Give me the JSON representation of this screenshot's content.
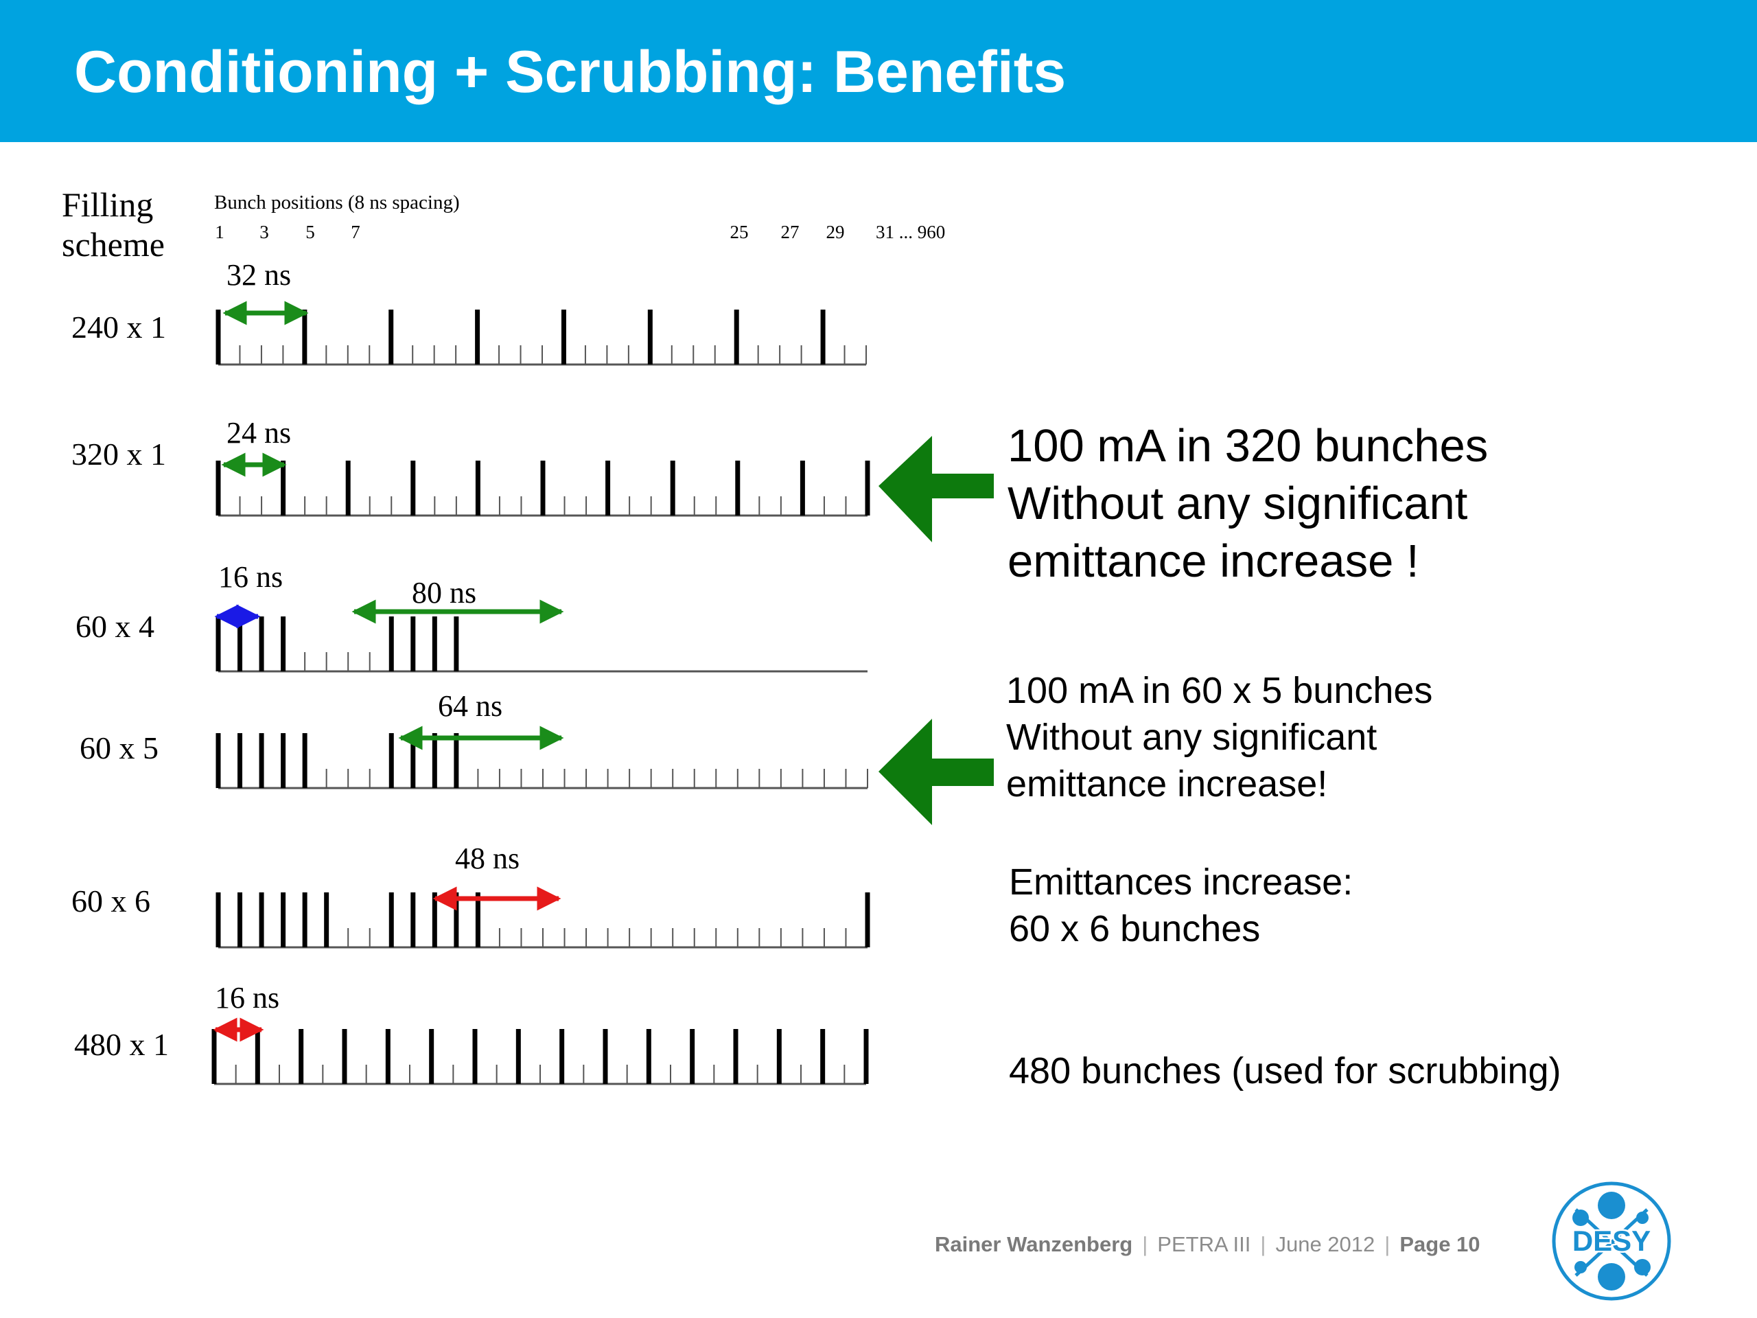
{
  "header": {
    "title": "Conditioning + Scrubbing: Benefits",
    "background_color": "#00a3e0"
  },
  "diagram": {
    "column_header": [
      "Filling",
      "scheme"
    ],
    "bunch_positions_caption": "Bunch positions (8 ns spacing)",
    "position_labels_left": [
      "1",
      "3",
      "5",
      "7"
    ],
    "position_labels_right": [
      "25",
      "27",
      "29",
      "31 ... 960"
    ],
    "rows": [
      {
        "label": "240 x 1",
        "annotations": [
          "32 ns"
        ]
      },
      {
        "label": "320 x 1",
        "annotations": [
          "24 ns"
        ]
      },
      {
        "label": "60 x 4",
        "annotations": [
          "16 ns",
          "80 ns"
        ]
      },
      {
        "label": "60 x 5",
        "annotations": [
          "64 ns"
        ]
      },
      {
        "label": "60 x 6",
        "annotations": [
          "48 ns"
        ]
      },
      {
        "label": "480 x 1",
        "annotations": [
          "16 ns"
        ]
      }
    ],
    "colors": {
      "green": "#1a8c1a",
      "blue": "#1a1ae6",
      "red": "#e61a1a",
      "big_arrow": "#0d7a0d"
    }
  },
  "notes": {
    "note1": {
      "line1": "100 mA in 320 bunches",
      "line2": "Without any significant",
      "line3": "emittance increase !"
    },
    "note2": {
      "line1": "100 mA in 60 x 5 bunches",
      "line2": "Without any significant",
      "line3": "emittance increase!"
    },
    "note3": {
      "line1": "Emittances increase:",
      "line2": "60 x 6 bunches"
    },
    "note4": {
      "line1": "480 bunches (used for scrubbing)"
    }
  },
  "footer": {
    "author": "Rainer Wanzenberg",
    "project": "PETRA III",
    "date": "June  2012",
    "page": "Page 10"
  },
  "logo": {
    "text": "DESY",
    "color": "#1a8fd0"
  }
}
